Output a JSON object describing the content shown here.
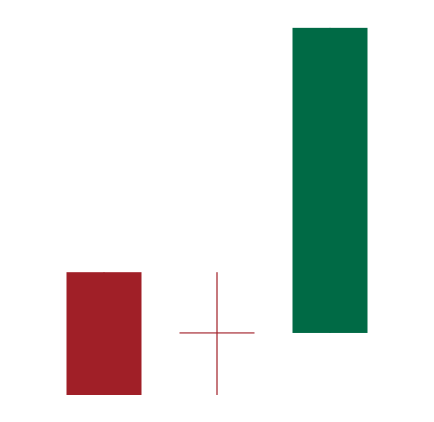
{
  "chart_data": {
    "type": "candlestick",
    "open": [
      35.5,
      21.1,
      21.1
    ],
    "high": [
      35.5,
      35.5,
      93.4
    ],
    "low": [
      6.4,
      6.4,
      21.1
    ],
    "close": [
      6.4,
      21.1,
      93.4
    ],
    "up_color": "#006a45",
    "down_color": "#a01f27",
    "ylim": [
      0,
      100
    ]
  }
}
